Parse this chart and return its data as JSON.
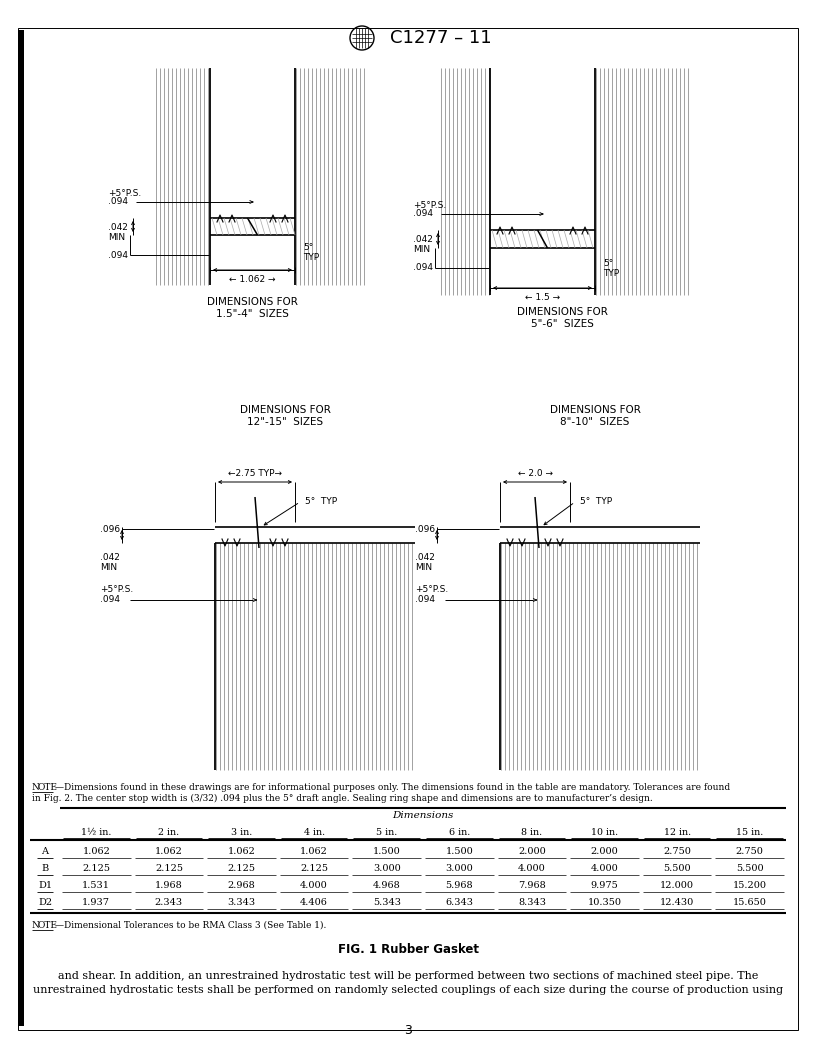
{
  "title": "C1277 – 11",
  "bg_color": "#ffffff",
  "page_num": "3",
  "note_text_1": "—Dimensions found in these drawings are for informational purposes only. The dimensions found in the table are mandatory. Tolerances are found",
  "note_text_2": "in Fig. 2. The center stop width is (3/32) .094 plus the 5° draft angle. Sealing ring shape and dimensions are to manufacturer’s design.",
  "note2_text": "—Dimensional Tolerances to be RMA Class 3 (See Table 1).",
  "fig_caption": "FIG. 1 Rubber Gasket",
  "body_text_1": "and shear. In addition, an unrestrained hydrostatic test will be performed between two sections of machined steel pipe. The",
  "body_text_2": "unrestrained hydrostatic tests shall be performed on randomly selected couplings of each size during the course of production using",
  "table_col_headers": [
    "1½ in.",
    "2 in.",
    "3 in.",
    "4 in.",
    "5 in.",
    "6 in.",
    "8 in.",
    "10 in.",
    "12 in.",
    "15 in."
  ],
  "table_rows": [
    [
      "A",
      "1.062",
      "1.062",
      "1.062",
      "1.062",
      "1.500",
      "1.500",
      "2.000",
      "2.000",
      "2.750",
      "2.750"
    ],
    [
      "B",
      "2.125",
      "2.125",
      "2.125",
      "2.125",
      "3.000",
      "3.000",
      "4.000",
      "4.000",
      "5.500",
      "5.500"
    ],
    [
      "D1",
      "1.531",
      "1.968",
      "2.968",
      "4.000",
      "4.968",
      "5.968",
      "7.968",
      "9.975",
      "12.000",
      "15.200"
    ],
    [
      "D2",
      "1.937",
      "2.343",
      "3.343",
      "4.406",
      "5.343",
      "6.343",
      "8.343",
      "10.350",
      "12.430",
      "15.650"
    ]
  ]
}
